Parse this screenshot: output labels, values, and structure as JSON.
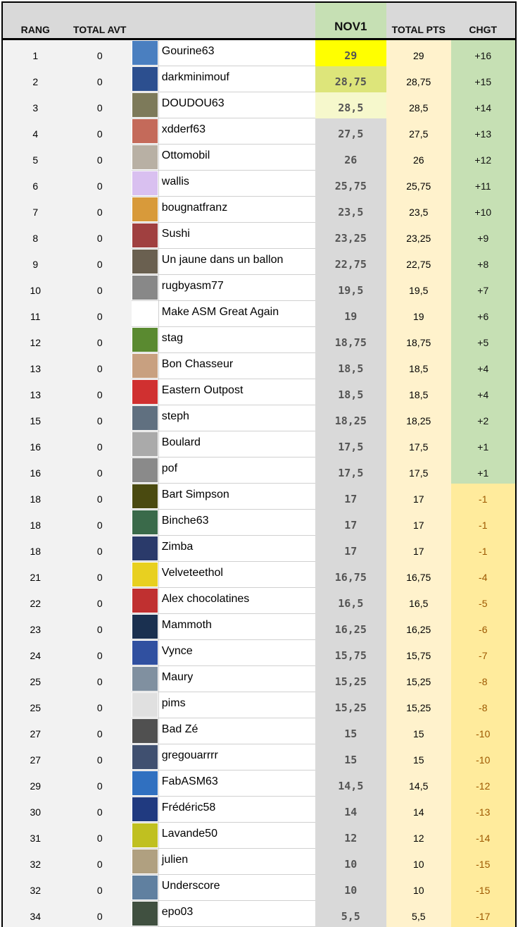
{
  "headers": {
    "rang": "RANG",
    "total_avt": "TOTAL AVT",
    "nov1": "NOV1",
    "total_pts": "TOTAL PTS",
    "chgt": "CHGT"
  },
  "colors": {
    "nov_top1": "#ffff00",
    "nov_top2": "#dde57a",
    "nov_top3": "#f6f8cc",
    "up": "#c6e0b4",
    "down": "#ffeb9c"
  },
  "rows": [
    {
      "rang": "1",
      "avt": "0",
      "name": "Gourine63",
      "nov": "29",
      "pts": "29",
      "chg": "+16",
      "av": "#4a7fc0"
    },
    {
      "rang": "2",
      "avt": "0",
      "name": "darkminimouf",
      "nov": "28,75",
      "pts": "28,75",
      "chg": "+15",
      "av": "#2c4f8f"
    },
    {
      "rang": "3",
      "avt": "0",
      "name": "DOUDOU63",
      "nov": "28,5",
      "pts": "28,5",
      "chg": "+14",
      "av": "#7d7a5a"
    },
    {
      "rang": "4",
      "avt": "0",
      "name": "xdderf63",
      "nov": "27,5",
      "pts": "27,5",
      "chg": "+13",
      "av": "#c46a5a"
    },
    {
      "rang": "5",
      "avt": "0",
      "name": "Ottomobil",
      "nov": "26",
      "pts": "26",
      "chg": "+12",
      "av": "#b8b0a4"
    },
    {
      "rang": "6",
      "avt": "0",
      "name": "wallis",
      "nov": "25,75",
      "pts": "25,75",
      "chg": "+11",
      "av": "#d9c0f0"
    },
    {
      "rang": "7",
      "avt": "0",
      "name": "bougnatfranz",
      "nov": "23,5",
      "pts": "23,5",
      "chg": "+10",
      "av": "#d89a3a"
    },
    {
      "rang": "8",
      "avt": "0",
      "name": "Sushi",
      "nov": "23,25",
      "pts": "23,25",
      "chg": "+9",
      "av": "#a04040"
    },
    {
      "rang": "9",
      "avt": "0",
      "name": "Un jaune dans un ballon",
      "nov": "22,75",
      "pts": "22,75",
      "chg": "+8",
      "av": "#6a6050"
    },
    {
      "rang": "10",
      "avt": "0",
      "name": "rugbyasm77",
      "nov": "19,5",
      "pts": "19,5",
      "chg": "+7",
      "av": "#888888"
    },
    {
      "rang": "11",
      "avt": "0",
      "name": "Make ASM Great Again",
      "nov": "19",
      "pts": "19",
      "chg": "+6",
      "av": "#ffffff"
    },
    {
      "rang": "12",
      "avt": "0",
      "name": "stag",
      "nov": "18,75",
      "pts": "18,75",
      "chg": "+5",
      "av": "#5a8a30"
    },
    {
      "rang": "13",
      "avt": "0",
      "name": "Bon Chasseur",
      "nov": "18,5",
      "pts": "18,5",
      "chg": "+4",
      "av": "#c8a080"
    },
    {
      "rang": "13",
      "avt": "0",
      "name": "Eastern Outpost",
      "nov": "18,5",
      "pts": "18,5",
      "chg": "+4",
      "av": "#d03030"
    },
    {
      "rang": "15",
      "avt": "0",
      "name": "steph",
      "nov": "18,25",
      "pts": "18,25",
      "chg": "+2",
      "av": "#607080"
    },
    {
      "rang": "16",
      "avt": "0",
      "name": "Boulard",
      "nov": "17,5",
      "pts": "17,5",
      "chg": "+1",
      "av": "#aaaaaa"
    },
    {
      "rang": "16",
      "avt": "0",
      "name": "pof",
      "nov": "17,5",
      "pts": "17,5",
      "chg": "+1",
      "av": "#8a8a8a"
    },
    {
      "rang": "18",
      "avt": "0",
      "name": "Bart Simpson",
      "nov": "17",
      "pts": "17",
      "chg": "-1",
      "av": "#4a4a10"
    },
    {
      "rang": "18",
      "avt": "0",
      "name": "Binche63",
      "nov": "17",
      "pts": "17",
      "chg": "-1",
      "av": "#3a6a4a"
    },
    {
      "rang": "18",
      "avt": "0",
      "name": "Zimba",
      "nov": "17",
      "pts": "17",
      "chg": "-1",
      "av": "#2a3a6a"
    },
    {
      "rang": "21",
      "avt": "0",
      "name": "Velveteethol",
      "nov": "16,75",
      "pts": "16,75",
      "chg": "-4",
      "av": "#e8d020"
    },
    {
      "rang": "22",
      "avt": "0",
      "name": "Alex chocolatines",
      "nov": "16,5",
      "pts": "16,5",
      "chg": "-5",
      "av": "#c03030"
    },
    {
      "rang": "23",
      "avt": "0",
      "name": "Mammoth",
      "nov": "16,25",
      "pts": "16,25",
      "chg": "-6",
      "av": "#1a3050"
    },
    {
      "rang": "24",
      "avt": "0",
      "name": "Vynce",
      "nov": "15,75",
      "pts": "15,75",
      "chg": "-7",
      "av": "#3050a0"
    },
    {
      "rang": "25",
      "avt": "0",
      "name": "Maury",
      "nov": "15,25",
      "pts": "15,25",
      "chg": "-8",
      "av": "#8090a0"
    },
    {
      "rang": "25",
      "avt": "0",
      "name": "pims",
      "nov": "15,25",
      "pts": "15,25",
      "chg": "-8",
      "av": "#e0e0e0"
    },
    {
      "rang": "27",
      "avt": "0",
      "name": "Bad Zé",
      "nov": "15",
      "pts": "15",
      "chg": "-10",
      "av": "#505050"
    },
    {
      "rang": "27",
      "avt": "0",
      "name": "gregouarrrr",
      "nov": "15",
      "pts": "15",
      "chg": "-10",
      "av": "#405070"
    },
    {
      "rang": "29",
      "avt": "0",
      "name": "FabASM63",
      "nov": "14,5",
      "pts": "14,5",
      "chg": "-12",
      "av": "#3070c0"
    },
    {
      "rang": "30",
      "avt": "0",
      "name": "Frédéric58",
      "nov": "14",
      "pts": "14",
      "chg": "-13",
      "av": "#203a80"
    },
    {
      "rang": "31",
      "avt": "0",
      "name": "Lavande50",
      "nov": "12",
      "pts": "12",
      "chg": "-14",
      "av": "#c0c020"
    },
    {
      "rang": "32",
      "avt": "0",
      "name": "julien",
      "nov": "10",
      "pts": "10",
      "chg": "-15",
      "av": "#b0a080"
    },
    {
      "rang": "32",
      "avt": "0",
      "name": "Underscore",
      "nov": "10",
      "pts": "10",
      "chg": "-15",
      "av": "#6080a0"
    },
    {
      "rang": "34",
      "avt": "0",
      "name": "epo03",
      "nov": "5,5",
      "pts": "5,5",
      "chg": "-17",
      "av": "#405040"
    }
  ]
}
